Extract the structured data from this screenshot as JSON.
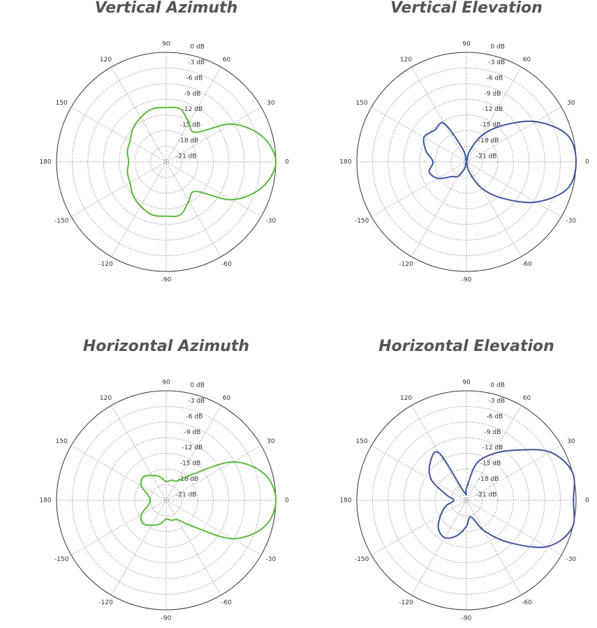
{
  "chart_data": [
    {
      "type": "polar",
      "title": "Vertical Azimuth",
      "color": "#5cb83c",
      "rlim": [
        -21,
        0
      ],
      "rticks": [
        {
          "value": 0,
          "label": "0 dB"
        },
        {
          "value": -3,
          "label": "-3 dB"
        },
        {
          "value": -6,
          "label": "-6 dB"
        },
        {
          "value": -9,
          "label": "-9 dB"
        },
        {
          "value": -12,
          "label": "-12 dB"
        },
        {
          "value": -15,
          "label": "-15 dB"
        },
        {
          "value": -18,
          "label": "-18 dB"
        },
        {
          "value": -21,
          "label": "-21 dB"
        }
      ],
      "thetaticks": [
        0,
        30,
        60,
        90,
        120,
        150,
        180,
        -150,
        -120,
        -90,
        -60,
        -30
      ],
      "theta": [
        -165,
        -150,
        -135,
        -120,
        -105,
        -90,
        -75,
        -60,
        -45,
        -30,
        -15,
        0,
        15,
        30,
        45,
        60,
        75,
        90,
        105,
        120,
        135,
        150,
        165,
        180
      ],
      "r": [
        -13.3,
        -13,
        -12,
        -11.2,
        -10.5,
        -10.6,
        -10.5,
        -12.3,
        -13,
        -6.5,
        -2,
        0,
        -2,
        -6.5,
        -13,
        -12.3,
        -10.5,
        -10.6,
        -10.5,
        -11.2,
        -12,
        -13,
        -13.3,
        -13.8
      ]
    },
    {
      "type": "polar",
      "title": "Vertical Elevation",
      "color": "#3b55a0",
      "rlim": [
        -21,
        0
      ],
      "rticks": [
        {
          "value": 0,
          "label": "0 dB"
        },
        {
          "value": -3,
          "label": "-3 dB"
        },
        {
          "value": -6,
          "label": "-6 dB"
        },
        {
          "value": -9,
          "label": "-9 dB"
        },
        {
          "value": -12,
          "label": "-12 dB"
        },
        {
          "value": -15,
          "label": "-15 dB"
        },
        {
          "value": -18,
          "label": "-18 dB"
        },
        {
          "value": -21,
          "label": "-21 dB"
        }
      ],
      "thetaticks": [
        0,
        30,
        60,
        90,
        120,
        150,
        180,
        -150,
        -120,
        -90,
        -60,
        -30
      ],
      "theta": [
        -165,
        -150,
        -135,
        -120,
        -105,
        -90,
        -75,
        -60,
        -45,
        -30,
        -15,
        0,
        15,
        30,
        45,
        60,
        75,
        90,
        105,
        120,
        135,
        150,
        165,
        180
      ],
      "r": [
        -13.6,
        -14.7,
        -17,
        -17.8,
        -19.7,
        -21,
        -19,
        -15.2,
        -11.1,
        -5.6,
        -1,
        0,
        -1,
        -5.6,
        -11.1,
        -15.2,
        -19,
        -21,
        -18.6,
        -12.5,
        -12.4,
        -11.6,
        -13,
        -14.6
      ]
    },
    {
      "type": "polar",
      "title": "Horizontal Azimuth",
      "color": "#5cb83c",
      "rlim": [
        -21,
        0
      ],
      "rticks": [
        {
          "value": 0,
          "label": "0 dB"
        },
        {
          "value": -3,
          "label": "-3 dB"
        },
        {
          "value": -6,
          "label": "-6 dB"
        },
        {
          "value": -9,
          "label": "-9 dB"
        },
        {
          "value": -12,
          "label": "-12 dB"
        },
        {
          "value": -15,
          "label": "-15 dB"
        },
        {
          "value": -18,
          "label": "-18 dB"
        },
        {
          "value": -21,
          "label": "-21 dB"
        }
      ],
      "thetaticks": [
        0,
        30,
        60,
        90,
        120,
        150,
        180,
        -150,
        -120,
        -90,
        -60,
        -30
      ],
      "theta": [
        -165,
        -150,
        -135,
        -120,
        -105,
        -90,
        -75,
        -60,
        -45,
        -30,
        -15,
        0,
        15,
        30,
        45,
        60,
        75,
        90,
        105,
        120,
        135,
        150,
        165,
        180
      ],
      "r": [
        -17.5,
        -15.5,
        -14.7,
        -15.5,
        -16.3,
        -17.4,
        -17,
        -16.7,
        -14,
        -6.3,
        -1.5,
        0,
        -1.5,
        -6.3,
        -14,
        -16.7,
        -17,
        -17.4,
        -16.3,
        -15.5,
        -14.7,
        -15.5,
        -17.5,
        -17.9
      ]
    },
    {
      "type": "polar",
      "title": "Horizontal Elevation",
      "color": "#3b55a0",
      "rlim": [
        -21,
        0
      ],
      "rticks": [
        {
          "value": 0,
          "label": "0 dB"
        },
        {
          "value": -3,
          "label": "-3 dB"
        },
        {
          "value": -6,
          "label": "-6 dB"
        },
        {
          "value": -9,
          "label": "-9 dB"
        },
        {
          "value": -12,
          "label": "-12 dB"
        },
        {
          "value": -15,
          "label": "-15 dB"
        },
        {
          "value": -18,
          "label": "-18 dB"
        },
        {
          "value": -21,
          "label": "-21 dB"
        }
      ],
      "thetaticks": [
        0,
        30,
        60,
        90,
        120,
        150,
        180,
        -150,
        -120,
        -90,
        -60,
        -30
      ],
      "theta": [
        -165,
        -150,
        -135,
        -120,
        -105,
        -90,
        -75,
        -60,
        -45,
        -30,
        -15,
        0,
        15,
        30,
        45,
        60,
        75,
        90,
        105,
        120,
        135,
        150,
        165,
        180
      ],
      "r": [
        -17,
        -15.3,
        -13.4,
        -12.7,
        -14,
        -16,
        -17.7,
        -14.3,
        -9.6,
        -3.2,
        -0.1,
        -0.5,
        0,
        -2.5,
        -7.4,
        -10.7,
        -13.8,
        -18.7,
        -19.4,
        -10.5,
        -11.1,
        -13.3,
        -17.1,
        -18.6
      ]
    }
  ]
}
